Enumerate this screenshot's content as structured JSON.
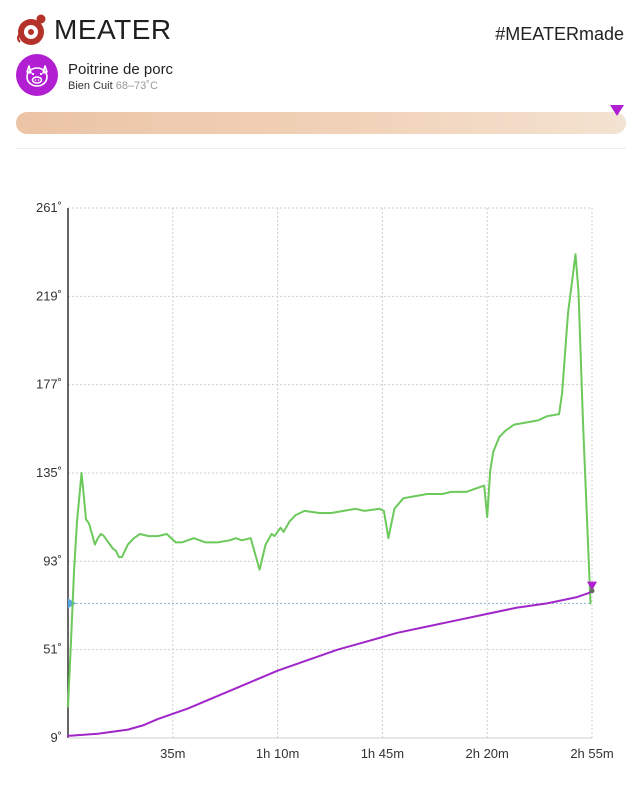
{
  "header": {
    "brand": "MEATER",
    "hashtag": "#MEATERmade"
  },
  "cook": {
    "name": "Poitrine de porc",
    "doneness": "Bien Cuit",
    "range": "68–73˚C",
    "avatar_icon": "pig-icon",
    "accent_color": "#b21fd3"
  },
  "progress": {
    "value": 0.985
  },
  "chart_data": {
    "type": "line",
    "title": "",
    "xlabel": "",
    "ylabel": "",
    "ylim": [
      9,
      261
    ],
    "xlim": [
      0,
      175
    ],
    "grid": true,
    "yticks": [
      {
        "value": 261,
        "label": "261˚"
      },
      {
        "value": 219,
        "label": "219˚"
      },
      {
        "value": 177,
        "label": "177˚"
      },
      {
        "value": 135,
        "label": "135˚"
      },
      {
        "value": 93,
        "label": "93˚"
      },
      {
        "value": 51,
        "label": "51˚"
      },
      {
        "value": 9,
        "label": "9˚"
      }
    ],
    "xticks": [
      {
        "value": 35,
        "label": "35m"
      },
      {
        "value": 70,
        "label": "1h 10m"
      },
      {
        "value": 105,
        "label": "1h 45m"
      },
      {
        "value": 140,
        "label": "2h 20m"
      },
      {
        "value": 175,
        "label": "2h 55m"
      }
    ],
    "target_temp": 73,
    "series": [
      {
        "color": "#6cc95b",
        "points": [
          [
            0,
            24
          ],
          [
            1,
            55
          ],
          [
            2,
            88
          ],
          [
            3,
            112
          ],
          [
            4,
            127
          ],
          [
            4.5,
            135
          ],
          [
            5,
            128
          ],
          [
            6,
            113
          ],
          [
            7,
            111
          ],
          [
            8,
            106
          ],
          [
            9,
            101
          ],
          [
            10,
            104
          ],
          [
            11,
            106
          ],
          [
            12,
            105
          ],
          [
            13,
            103
          ],
          [
            14,
            101
          ],
          [
            15,
            99
          ],
          [
            16,
            98
          ],
          [
            17,
            95
          ],
          [
            18,
            95
          ],
          [
            20,
            101
          ],
          [
            22,
            104
          ],
          [
            24,
            106
          ],
          [
            27,
            105
          ],
          [
            30,
            105
          ],
          [
            33,
            106
          ],
          [
            36,
            102
          ],
          [
            38,
            102
          ],
          [
            42,
            104
          ],
          [
            46,
            102
          ],
          [
            50,
            102
          ],
          [
            54,
            103
          ],
          [
            56,
            104
          ],
          [
            58,
            103
          ],
          [
            61,
            104
          ],
          [
            64,
            89
          ],
          [
            66,
            101
          ],
          [
            68,
            106
          ],
          [
            69,
            105
          ],
          [
            71,
            109
          ],
          [
            72,
            107
          ],
          [
            74,
            112
          ],
          [
            76,
            115
          ],
          [
            79,
            117
          ],
          [
            84,
            116
          ],
          [
            88,
            116
          ],
          [
            92,
            117
          ],
          [
            96,
            118
          ],
          [
            99,
            117
          ],
          [
            104,
            118
          ],
          [
            105.5,
            117
          ],
          [
            107,
            104
          ],
          [
            109,
            118
          ],
          [
            112,
            123
          ],
          [
            116,
            124
          ],
          [
            120,
            125
          ],
          [
            125,
            125
          ],
          [
            128,
            126
          ],
          [
            133,
            126
          ],
          [
            137,
            128
          ],
          [
            139,
            129
          ],
          [
            140,
            114
          ],
          [
            141,
            136
          ],
          [
            142,
            145
          ],
          [
            144,
            152
          ],
          [
            146,
            155
          ],
          [
            149,
            158
          ],
          [
            153,
            159
          ],
          [
            157,
            160
          ],
          [
            160,
            162
          ],
          [
            164,
            163
          ],
          [
            165,
            173
          ],
          [
            167,
            211
          ],
          [
            169.5,
            239
          ],
          [
            170.5,
            221
          ],
          [
            172,
            159
          ],
          [
            174.5,
            73
          ]
        ]
      },
      {
        "color": "#a126c9",
        "points": [
          [
            0,
            10
          ],
          [
            10,
            11
          ],
          [
            20,
            13
          ],
          [
            25,
            15
          ],
          [
            30,
            18
          ],
          [
            40,
            23
          ],
          [
            50,
            29
          ],
          [
            60,
            35
          ],
          [
            70,
            41
          ],
          [
            80,
            46
          ],
          [
            90,
            51
          ],
          [
            100,
            55
          ],
          [
            110,
            59
          ],
          [
            120,
            62
          ],
          [
            130,
            65
          ],
          [
            140,
            68
          ],
          [
            150,
            71
          ],
          [
            160,
            73
          ],
          [
            170,
            76
          ],
          [
            174,
            78
          ],
          [
            175,
            79
          ]
        ]
      }
    ]
  }
}
